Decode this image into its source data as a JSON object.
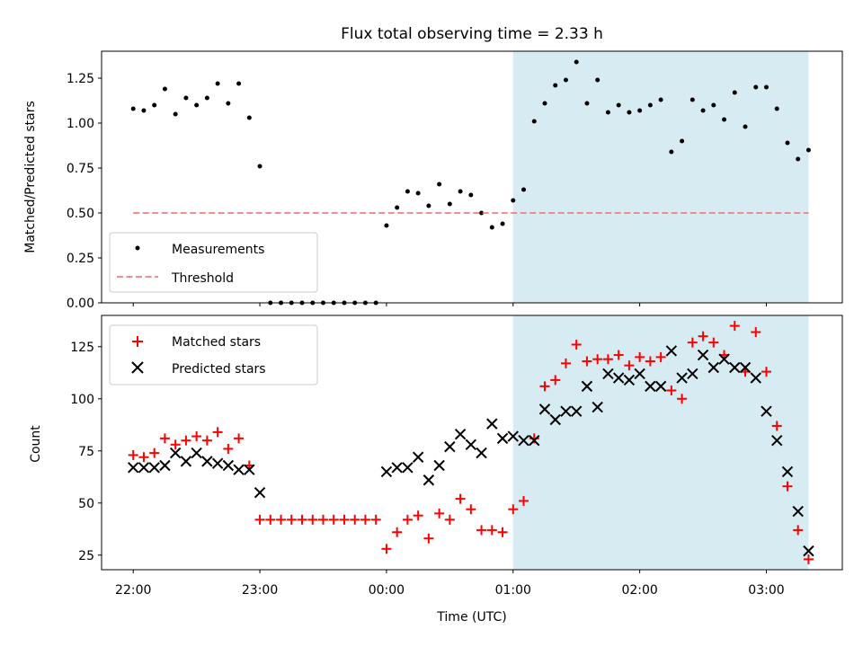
{
  "figure": {
    "title": "Flux total observing time = 2.33 h"
  },
  "chart_data": [
    {
      "type": "scatter",
      "ylabel": "Matched/Predicted stars",
      "ylim": [
        0.0,
        1.4
      ],
      "yticks": [
        "0.00",
        "0.25",
        "0.50",
        "0.75",
        "1.00",
        "1.25"
      ],
      "shaded_interval": [
        "01:00",
        "03:20"
      ],
      "shade_color": "#add8e6",
      "series": [
        {
          "name": "Measurements",
          "style": "dot",
          "color": "#000000",
          "points": [
            [
              "22:00",
              1.08
            ],
            [
              "22:05",
              1.07
            ],
            [
              "22:10",
              1.1
            ],
            [
              "22:15",
              1.19
            ],
            [
              "22:20",
              1.05
            ],
            [
              "22:25",
              1.14
            ],
            [
              "22:30",
              1.1
            ],
            [
              "22:35",
              1.14
            ],
            [
              "22:40",
              1.22
            ],
            [
              "22:45",
              1.11
            ],
            [
              "22:50",
              1.22
            ],
            [
              "22:55",
              1.03
            ],
            [
              "23:00",
              0.76
            ],
            [
              "23:05",
              0.0
            ],
            [
              "23:10",
              0.0
            ],
            [
              "23:15",
              0.0
            ],
            [
              "23:20",
              0.0
            ],
            [
              "23:25",
              0.0
            ],
            [
              "23:30",
              0.0
            ],
            [
              "23:35",
              0.0
            ],
            [
              "23:40",
              0.0
            ],
            [
              "23:45",
              0.0
            ],
            [
              "23:50",
              0.0
            ],
            [
              "23:55",
              0.0
            ],
            [
              "00:00",
              0.43
            ],
            [
              "00:05",
              0.53
            ],
            [
              "00:10",
              0.62
            ],
            [
              "00:15",
              0.61
            ],
            [
              "00:20",
              0.54
            ],
            [
              "00:25",
              0.66
            ],
            [
              "00:30",
              0.55
            ],
            [
              "00:35",
              0.62
            ],
            [
              "00:40",
              0.6
            ],
            [
              "00:45",
              0.5
            ],
            [
              "00:50",
              0.42
            ],
            [
              "00:55",
              0.44
            ],
            [
              "01:00",
              0.57
            ],
            [
              "01:05",
              0.63
            ],
            [
              "01:10",
              1.01
            ],
            [
              "01:15",
              1.11
            ],
            [
              "01:20",
              1.21
            ],
            [
              "01:25",
              1.24
            ],
            [
              "01:30",
              1.34
            ],
            [
              "01:35",
              1.11
            ],
            [
              "01:40",
              1.24
            ],
            [
              "01:45",
              1.06
            ],
            [
              "01:50",
              1.1
            ],
            [
              "01:55",
              1.06
            ],
            [
              "02:00",
              1.07
            ],
            [
              "02:05",
              1.1
            ],
            [
              "02:10",
              1.13
            ],
            [
              "02:15",
              0.84
            ],
            [
              "02:20",
              0.9
            ],
            [
              "02:25",
              1.13
            ],
            [
              "02:30",
              1.07
            ],
            [
              "02:35",
              1.1
            ],
            [
              "02:40",
              1.02
            ],
            [
              "02:45",
              1.17
            ],
            [
              "02:50",
              0.98
            ],
            [
              "02:55",
              1.2
            ],
            [
              "03:00",
              1.2
            ],
            [
              "03:05",
              1.08
            ],
            [
              "03:10",
              0.89
            ],
            [
              "03:15",
              0.8
            ],
            [
              "03:20",
              0.85
            ]
          ]
        },
        {
          "name": "Threshold",
          "style": "dashed-line",
          "color": "#f08080",
          "points": [
            [
              "22:00",
              0.5
            ],
            [
              "03:20",
              0.5
            ]
          ]
        }
      ],
      "legend_position": "lower-left"
    },
    {
      "type": "scatter",
      "ylabel": "Count",
      "xlabel": "Time (UTC)",
      "ylim": [
        18,
        140
      ],
      "yticks": [
        25,
        50,
        75,
        100,
        125
      ],
      "xticks": [
        "22:00",
        "23:00",
        "00:00",
        "01:00",
        "02:00",
        "03:00"
      ],
      "shaded_interval": [
        "01:00",
        "03:20"
      ],
      "shade_color": "#add8e6",
      "series": [
        {
          "name": "Matched stars",
          "marker": "plus",
          "color": "#ff0000",
          "points": [
            [
              "22:00",
              73
            ],
            [
              "22:05",
              72
            ],
            [
              "22:10",
              74
            ],
            [
              "22:15",
              81
            ],
            [
              "22:20",
              78
            ],
            [
              "22:25",
              80
            ],
            [
              "22:30",
              82
            ],
            [
              "22:35",
              80
            ],
            [
              "22:40",
              84
            ],
            [
              "22:45",
              76
            ],
            [
              "22:50",
              81
            ],
            [
              "22:55",
              68
            ],
            [
              "23:00",
              42
            ],
            [
              "23:05",
              42
            ],
            [
              "23:10",
              42
            ],
            [
              "23:15",
              42
            ],
            [
              "23:20",
              42
            ],
            [
              "23:25",
              42
            ],
            [
              "23:30",
              42
            ],
            [
              "23:35",
              42
            ],
            [
              "23:40",
              42
            ],
            [
              "23:45",
              42
            ],
            [
              "23:50",
              42
            ],
            [
              "23:55",
              42
            ],
            [
              "00:00",
              28
            ],
            [
              "00:05",
              36
            ],
            [
              "00:10",
              42
            ],
            [
              "00:15",
              44
            ],
            [
              "00:20",
              33
            ],
            [
              "00:25",
              45
            ],
            [
              "00:30",
              42
            ],
            [
              "00:35",
              52
            ],
            [
              "00:40",
              47
            ],
            [
              "00:45",
              37
            ],
            [
              "00:50",
              37
            ],
            [
              "00:55",
              36
            ],
            [
              "01:00",
              47
            ],
            [
              "01:05",
              51
            ],
            [
              "01:10",
              81
            ],
            [
              "01:15",
              106
            ],
            [
              "01:20",
              109
            ],
            [
              "01:25",
              117
            ],
            [
              "01:30",
              126
            ],
            [
              "01:35",
              118
            ],
            [
              "01:40",
              119
            ],
            [
              "01:45",
              119
            ],
            [
              "01:50",
              121
            ],
            [
              "01:55",
              116
            ],
            [
              "02:00",
              120
            ],
            [
              "02:05",
              118
            ],
            [
              "02:10",
              120
            ],
            [
              "02:15",
              104
            ],
            [
              "02:20",
              100
            ],
            [
              "02:25",
              127
            ],
            [
              "02:30",
              130
            ],
            [
              "02:35",
              127
            ],
            [
              "02:40",
              121
            ],
            [
              "02:45",
              135
            ],
            [
              "02:50",
              113
            ],
            [
              "02:55",
              132
            ],
            [
              "03:00",
              113
            ],
            [
              "03:05",
              87
            ],
            [
              "03:10",
              58
            ],
            [
              "03:15",
              37
            ],
            [
              "03:20",
              23
            ]
          ]
        },
        {
          "name": "Predicted stars",
          "marker": "x",
          "color": "#000000",
          "points": [
            [
              "22:00",
              67
            ],
            [
              "22:05",
              67
            ],
            [
              "22:10",
              67
            ],
            [
              "22:15",
              68
            ],
            [
              "22:20",
              74
            ],
            [
              "22:25",
              70
            ],
            [
              "22:30",
              74
            ],
            [
              "22:35",
              70
            ],
            [
              "22:40",
              69
            ],
            [
              "22:45",
              68
            ],
            [
              "22:50",
              66
            ],
            [
              "22:55",
              66
            ],
            [
              "23:00",
              55
            ],
            [
              "00:00",
              65
            ],
            [
              "00:05",
              67
            ],
            [
              "00:10",
              67
            ],
            [
              "00:15",
              72
            ],
            [
              "00:20",
              61
            ],
            [
              "00:25",
              68
            ],
            [
              "00:30",
              77
            ],
            [
              "00:35",
              83
            ],
            [
              "00:40",
              78
            ],
            [
              "00:45",
              74
            ],
            [
              "00:50",
              88
            ],
            [
              "00:55",
              81
            ],
            [
              "01:00",
              82
            ],
            [
              "01:05",
              80
            ],
            [
              "01:10",
              80
            ],
            [
              "01:15",
              95
            ],
            [
              "01:20",
              90
            ],
            [
              "01:25",
              94
            ],
            [
              "01:30",
              94
            ],
            [
              "01:35",
              106
            ],
            [
              "01:40",
              96
            ],
            [
              "01:45",
              112
            ],
            [
              "01:50",
              110
            ],
            [
              "01:55",
              109
            ],
            [
              "02:00",
              112
            ],
            [
              "02:05",
              106
            ],
            [
              "02:10",
              106
            ],
            [
              "02:15",
              123
            ],
            [
              "02:20",
              110
            ],
            [
              "02:25",
              112
            ],
            [
              "02:30",
              121
            ],
            [
              "02:35",
              115
            ],
            [
              "02:40",
              119
            ],
            [
              "02:45",
              115
            ],
            [
              "02:50",
              115
            ],
            [
              "02:55",
              110
            ],
            [
              "03:00",
              94
            ],
            [
              "03:05",
              80
            ],
            [
              "03:10",
              65
            ],
            [
              "03:15",
              46
            ],
            [
              "03:20",
              27
            ]
          ]
        }
      ],
      "legend_position": "upper-left"
    }
  ]
}
